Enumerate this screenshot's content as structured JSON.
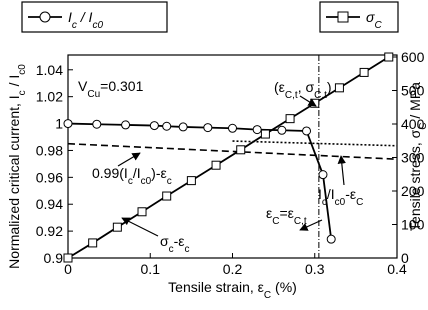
{
  "chart_data": {
    "type": "line",
    "x_label": [
      "Tensile strain, ε",
      {
        "sub": "C"
      },
      " (%)"
    ],
    "y_label": [
      "Normalized critical current, I",
      {
        "sub": "c"
      },
      " / I",
      {
        "sub": "c0"
      }
    ],
    "y2_label": [
      "Tensile stress, σ",
      {
        "sub": "C"
      },
      " / MPa"
    ],
    "xlim": [
      0,
      0.4
    ],
    "xticks": [
      0,
      0.1,
      0.2,
      0.3,
      0.4
    ],
    "ylim": [
      0.9,
      1.051
    ],
    "yticks": [
      0.9,
      0.92,
      0.94,
      0.96,
      0.98,
      1,
      1.02,
      1.04
    ],
    "y2lim": [
      0,
      606
    ],
    "y2ticks": [
      0,
      100,
      200,
      300,
      400,
      500,
      600
    ],
    "series": [
      {
        "name": [
          "I",
          {
            "sub": "c"
          },
          " / I",
          {
            "sub": "c0"
          }
        ],
        "marker": "circle",
        "color": "#000000",
        "axis": "y",
        "x": [
          0,
          0.035,
          0.07,
          0.105,
          0.12,
          0.14,
          0.17,
          0.2,
          0.23,
          0.26,
          0.29,
          0.31,
          0.32
        ],
        "values": [
          1.0,
          0.9995,
          0.999,
          0.9985,
          0.998,
          0.9975,
          0.997,
          0.9965,
          0.9955,
          0.995,
          0.9945,
          0.962,
          0.914
        ]
      },
      {
        "name": [
          "σ",
          {
            "sub": "C"
          }
        ],
        "marker": "square",
        "color": "#000000",
        "axis": "y2",
        "x": [
          0,
          0.03,
          0.06,
          0.09,
          0.12,
          0.15,
          0.18,
          0.21,
          0.24,
          0.27,
          0.3,
          0.33,
          0.36,
          0.39
        ],
        "values": [
          0,
          45,
          92,
          138,
          185,
          231,
          277,
          323,
          370,
          416,
          462,
          508,
          554,
          600
        ]
      }
    ],
    "reference_lines": [
      {
        "x": [
          0,
          0.4
        ],
        "values": [
          0.985,
          0.9735
        ],
        "dash": "7 4"
      },
      {
        "x": [
          0.2,
          0.4
        ],
        "values": [
          0.987,
          0.9835
        ],
        "dash": "2 2"
      }
    ],
    "vlines": [
      {
        "x": 0.305,
        "dash": "6 2 1 2"
      }
    ],
    "annotations": [
      [
        "V",
        {
          "sub": "Cu"
        },
        "=0.301"
      ],
      [
        "(ε",
        {
          "sub": "C,t"
        },
        ", σ",
        {
          "sub": "C,t"
        },
        ")"
      ],
      [
        "0.99(I",
        {
          "sub": "c"
        },
        "/I",
        {
          "sub": "c0"
        },
        ")-ε",
        {
          "sub": "c"
        }
      ],
      [
        "I",
        {
          "sub": "c"
        },
        "/I",
        {
          "sub": "c0"
        },
        "-ε",
        {
          "sub": "C"
        }
      ],
      [
        "ε",
        {
          "sub": "C"
        },
        "=ε",
        {
          "sub": "C,t"
        }
      ],
      [
        "σ",
        {
          "sub": "c"
        },
        "-ε",
        {
          "sub": "c"
        }
      ]
    ]
  }
}
